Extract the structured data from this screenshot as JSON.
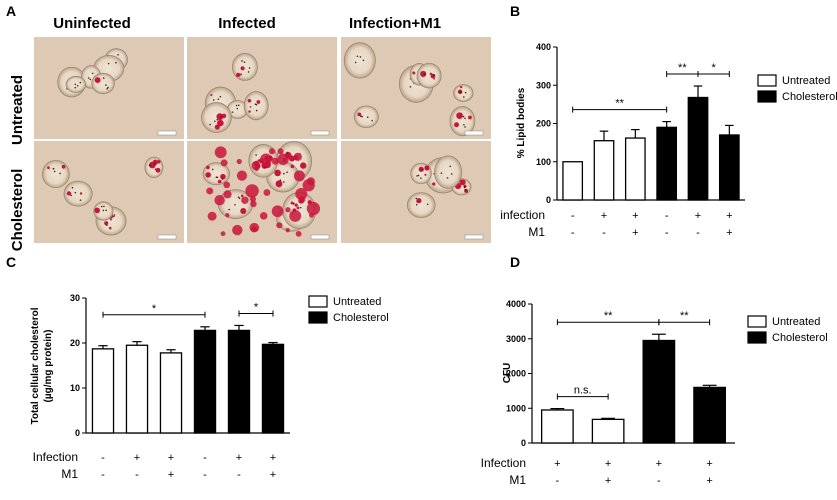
{
  "panel_a": {
    "letter": "A",
    "col_titles": [
      "Uninfected",
      "Infected",
      "Infection+M1"
    ],
    "row_titles": [
      "Untreated",
      "Cholesterol"
    ],
    "scale_bar": "10 µm",
    "colors": {
      "tissue_bg": "#ddc9b4",
      "stain": "#c9153a"
    }
  },
  "chart_data": [
    {
      "id": "B",
      "letter": "B",
      "type": "bar",
      "ylabel": "% Lipid bodies",
      "ylim": [
        0,
        400
      ],
      "yticks": [
        "0",
        "100",
        "200",
        "300",
        "400"
      ],
      "values": [
        100,
        155,
        162,
        190,
        268,
        170
      ],
      "errors": [
        0,
        25,
        22,
        15,
        30,
        25
      ],
      "fills": [
        "white",
        "white",
        "white",
        "black",
        "black",
        "black"
      ],
      "conditions": [
        {
          "label": "infection",
          "signs": [
            "-",
            "+",
            "+",
            "-",
            "+",
            "+"
          ]
        },
        {
          "label": "M1",
          "signs": [
            "-",
            "-",
            "+",
            "-",
            "-",
            "+"
          ]
        }
      ],
      "legend": [
        {
          "label": "Untreated",
          "fill": "white"
        },
        {
          "label": "Cholesterol",
          "fill": "black"
        }
      ],
      "significance": [
        {
          "from": 0,
          "to": 3,
          "label": "**"
        },
        {
          "from": 3,
          "to": 4,
          "label": "**"
        },
        {
          "from": 4,
          "to": 5,
          "label": "*"
        }
      ]
    },
    {
      "id": "C",
      "letter": "C",
      "type": "bar",
      "ylabel_lines": [
        "Total cellular cholesterol",
        "(µg/mg protein)"
      ],
      "ylim": [
        0,
        30
      ],
      "yticks": [
        "0",
        "10",
        "20",
        "30"
      ],
      "values": [
        18.7,
        19.5,
        17.8,
        22.8,
        22.8,
        19.7
      ],
      "errors": [
        0.7,
        0.8,
        0.7,
        0.8,
        1.1,
        0.4
      ],
      "fills": [
        "white",
        "white",
        "white",
        "black",
        "black",
        "black"
      ],
      "conditions": [
        {
          "label": "Infection",
          "signs": [
            "-",
            "+",
            "+",
            "-",
            "+",
            "+"
          ]
        },
        {
          "label": "M1",
          "signs": [
            "-",
            "-",
            "+",
            "-",
            "-",
            "+"
          ]
        }
      ],
      "legend": [
        {
          "label": "Untreated",
          "fill": "white"
        },
        {
          "label": "Cholesterol",
          "fill": "black"
        }
      ],
      "significance": [
        {
          "from": 0,
          "to": 3,
          "label": "*"
        },
        {
          "from": 4,
          "to": 5,
          "label": "*"
        }
      ]
    },
    {
      "id": "D",
      "letter": "D",
      "type": "bar",
      "ylabel": "CFU",
      "ylim": [
        0,
        4000
      ],
      "yticks": [
        "0",
        "1000",
        "2000",
        "3000",
        "4000"
      ],
      "values": [
        950,
        680,
        2950,
        1600
      ],
      "errors": [
        40,
        30,
        180,
        60
      ],
      "fills": [
        "white",
        "white",
        "black",
        "black"
      ],
      "conditions": [
        {
          "label": "Infection",
          "signs": [
            "+",
            "+",
            "+",
            "+"
          ]
        },
        {
          "label": "M1",
          "signs": [
            "-",
            "+",
            "-",
            "+"
          ]
        }
      ],
      "legend": [
        {
          "label": "Untreated",
          "fill": "white"
        },
        {
          "label": "Cholesterol",
          "fill": "black"
        }
      ],
      "significance": [
        {
          "from": 0,
          "to": 1,
          "label": "n.s."
        },
        {
          "from": 0,
          "to": 2,
          "label": "**"
        },
        {
          "from": 2,
          "to": 3,
          "label": "**"
        }
      ]
    }
  ]
}
